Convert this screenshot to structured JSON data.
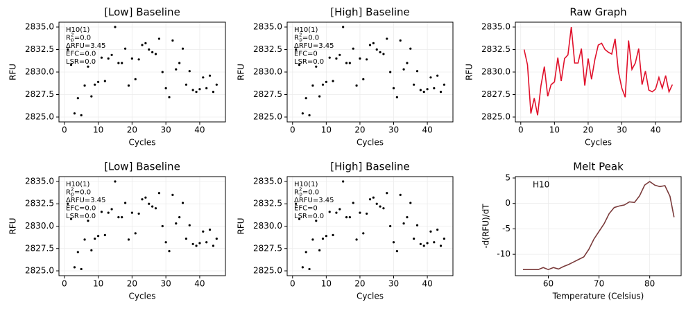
{
  "chart_data": [
    {
      "type": "scatter",
      "title": "[Low] Baseline",
      "x_label": "Cycles",
      "y_label": "RFU",
      "color": "#000000",
      "grid": true,
      "annotation": [
        "H10(1)",
        {
          "text": "R",
          "sup": "2",
          "sub": "p",
          "rest": "=0.0"
        },
        "ΔRFU=3.45",
        "EFC=0.0",
        "LSR=0.0"
      ],
      "x": [
        1,
        2,
        3,
        4,
        5,
        6,
        7,
        8,
        9,
        10,
        11,
        12,
        13,
        14,
        15,
        16,
        17,
        18,
        19,
        20,
        21,
        22,
        23,
        24,
        25,
        26,
        27,
        28,
        29,
        30,
        31,
        32,
        33,
        34,
        35,
        36,
        37,
        38,
        39,
        40,
        41,
        42,
        43,
        44,
        45
      ],
      "values": [
        2832.5,
        2830.8,
        2825.4,
        2827.1,
        2825.2,
        2828.5,
        2830.6,
        2827.3,
        2828.6,
        2828.9,
        2831.6,
        2829.0,
        2831.5,
        2831.9,
        2835.0,
        2831.0,
        2831.0,
        2832.6,
        2828.5,
        2831.5,
        2829.2,
        2831.4,
        2833.0,
        2833.2,
        2832.5,
        2832.2,
        2832.0,
        2833.7,
        2830.0,
        2828.2,
        2827.2,
        2833.5,
        2830.3,
        2831.0,
        2832.6,
        2828.6,
        2830.1,
        2828.0,
        2827.8,
        2828.1,
        2829.4,
        2828.2,
        2829.6,
        2827.8,
        2828.6
      ],
      "xlim": [
        -1.6,
        47.6
      ],
      "ylim": [
        2824.46,
        2835.54
      ],
      "xticks": [
        0,
        10,
        20,
        30,
        40
      ],
      "yticks": [
        {
          "value": 2825,
          "label": "2825.0"
        },
        2827.5,
        {
          "value": 2830,
          "label": "2830.0"
        },
        2832.5,
        {
          "value": 2835,
          "label": "2835.0"
        }
      ]
    },
    {
      "type": "scatter",
      "title": "[High] Baseline",
      "x_label": "Cycles",
      "y_label": "RFU",
      "color": "#000000",
      "grid": true,
      "annotation": [
        "H10(1)",
        {
          "text": "R",
          "sup": "2",
          "sub": "p",
          "rest": "=0.0"
        },
        "ΔRFU=3.45",
        "EFC=0",
        "LSR=0.0"
      ],
      "x": [
        1,
        2,
        3,
        4,
        5,
        6,
        7,
        8,
        9,
        10,
        11,
        12,
        13,
        14,
        15,
        16,
        17,
        18,
        19,
        20,
        21,
        22,
        23,
        24,
        25,
        26,
        27,
        28,
        29,
        30,
        31,
        32,
        33,
        34,
        35,
        36,
        37,
        38,
        39,
        40,
        41,
        42,
        43,
        44,
        45
      ],
      "values": [
        2832.5,
        2830.8,
        2825.4,
        2827.1,
        2825.2,
        2828.5,
        2830.6,
        2827.3,
        2828.6,
        2828.9,
        2831.6,
        2829.0,
        2831.5,
        2831.9,
        2835.0,
        2831.0,
        2831.0,
        2832.6,
        2828.5,
        2831.5,
        2829.2,
        2831.4,
        2833.0,
        2833.2,
        2832.5,
        2832.2,
        2832.0,
        2833.7,
        2830.0,
        2828.2,
        2827.2,
        2833.5,
        2830.3,
        2831.0,
        2832.6,
        2828.6,
        2830.1,
        2828.0,
        2827.8,
        2828.1,
        2829.4,
        2828.2,
        2829.6,
        2827.8,
        2828.6
      ],
      "xlim": [
        -1.6,
        47.6
      ],
      "ylim": [
        2824.46,
        2835.54
      ],
      "xticks": [
        0,
        10,
        20,
        30,
        40
      ],
      "yticks": [
        {
          "value": 2825,
          "label": "2825.0"
        },
        2827.5,
        {
          "value": 2830,
          "label": "2830.0"
        },
        2832.5,
        {
          "value": 2835,
          "label": "2835.0"
        }
      ]
    },
    {
      "type": "line",
      "title": "Raw Graph",
      "x_label": "Cycles",
      "y_label": "RFU",
      "color": "#e0102a",
      "grid": true,
      "x": [
        1,
        2,
        3,
        4,
        5,
        6,
        7,
        8,
        9,
        10,
        11,
        12,
        13,
        14,
        15,
        16,
        17,
        18,
        19,
        20,
        21,
        22,
        23,
        24,
        25,
        26,
        27,
        28,
        29,
        30,
        31,
        32,
        33,
        34,
        35,
        36,
        37,
        38,
        39,
        40,
        41,
        42,
        43,
        44,
        45
      ],
      "values": [
        2832.5,
        2830.8,
        2825.4,
        2827.1,
        2825.2,
        2828.5,
        2830.6,
        2827.3,
        2828.6,
        2828.9,
        2831.6,
        2829.0,
        2831.5,
        2831.9,
        2835.0,
        2831.0,
        2831.0,
        2832.6,
        2828.5,
        2831.5,
        2829.2,
        2831.4,
        2833.0,
        2833.2,
        2832.5,
        2832.2,
        2832.0,
        2833.7,
        2830.0,
        2828.2,
        2827.2,
        2833.5,
        2830.3,
        2831.0,
        2832.6,
        2828.6,
        2830.1,
        2828.0,
        2827.8,
        2828.1,
        2829.4,
        2828.2,
        2829.6,
        2827.8,
        2828.6
      ],
      "xlim": [
        -1.6,
        47.6
      ],
      "ylim": [
        2824.46,
        2835.54
      ],
      "xticks": [
        0,
        10,
        20,
        30,
        40
      ],
      "yticks": [
        {
          "value": 2825,
          "label": "2825.0"
        },
        2827.5,
        {
          "value": 2830,
          "label": "2830.0"
        },
        2832.5,
        {
          "value": 2835,
          "label": "2835.0"
        }
      ]
    },
    {
      "type": "scatter",
      "title": "[Low] Baseline",
      "x_label": "Cycles",
      "y_label": "RFU",
      "color": "#000000",
      "grid": true,
      "annotation": [
        "H10(1)",
        {
          "text": "R",
          "sup": "2",
          "sub": "p",
          "rest": "=0.0"
        },
        "ΔRFU=3.45",
        "EFC=0.0",
        "LSR=0.0"
      ],
      "x": [
        1,
        2,
        3,
        4,
        5,
        6,
        7,
        8,
        9,
        10,
        11,
        12,
        13,
        14,
        15,
        16,
        17,
        18,
        19,
        20,
        21,
        22,
        23,
        24,
        25,
        26,
        27,
        28,
        29,
        30,
        31,
        32,
        33,
        34,
        35,
        36,
        37,
        38,
        39,
        40,
        41,
        42,
        43,
        44,
        45
      ],
      "values": [
        2832.5,
        2830.8,
        2825.4,
        2827.1,
        2825.2,
        2828.5,
        2830.6,
        2827.3,
        2828.6,
        2828.9,
        2831.6,
        2829.0,
        2831.5,
        2831.9,
        2835.0,
        2831.0,
        2831.0,
        2832.6,
        2828.5,
        2831.5,
        2829.2,
        2831.4,
        2833.0,
        2833.2,
        2832.5,
        2832.2,
        2832.0,
        2833.7,
        2830.0,
        2828.2,
        2827.2,
        2833.5,
        2830.3,
        2831.0,
        2832.6,
        2828.6,
        2830.1,
        2828.0,
        2827.8,
        2828.1,
        2829.4,
        2828.2,
        2829.6,
        2827.8,
        2828.6
      ],
      "xlim": [
        -1.6,
        47.6
      ],
      "ylim": [
        2824.46,
        2835.54
      ],
      "xticks": [
        0,
        10,
        20,
        30,
        40
      ],
      "yticks": [
        {
          "value": 2825,
          "label": "2825.0"
        },
        2827.5,
        {
          "value": 2830,
          "label": "2830.0"
        },
        2832.5,
        {
          "value": 2835,
          "label": "2835.0"
        }
      ]
    },
    {
      "type": "scatter",
      "title": "[High] Baseline",
      "x_label": "Cycles",
      "y_label": "RFU",
      "color": "#000000",
      "grid": true,
      "annotation": [
        "H10(1)",
        {
          "text": "R",
          "sup": "2",
          "sub": "p",
          "rest": "=0.0"
        },
        "ΔRFU=3.45",
        "EFC=0",
        "LSR=0.0"
      ],
      "x": [
        1,
        2,
        3,
        4,
        5,
        6,
        7,
        8,
        9,
        10,
        11,
        12,
        13,
        14,
        15,
        16,
        17,
        18,
        19,
        20,
        21,
        22,
        23,
        24,
        25,
        26,
        27,
        28,
        29,
        30,
        31,
        32,
        33,
        34,
        35,
        36,
        37,
        38,
        39,
        40,
        41,
        42,
        43,
        44,
        45
      ],
      "values": [
        2832.5,
        2830.8,
        2825.4,
        2827.1,
        2825.2,
        2828.5,
        2830.6,
        2827.3,
        2828.6,
        2828.9,
        2831.6,
        2829.0,
        2831.5,
        2831.9,
        2835.0,
        2831.0,
        2831.0,
        2832.6,
        2828.5,
        2831.5,
        2829.2,
        2831.4,
        2833.0,
        2833.2,
        2832.5,
        2832.2,
        2832.0,
        2833.7,
        2830.0,
        2828.2,
        2827.2,
        2833.5,
        2830.3,
        2831.0,
        2832.6,
        2828.6,
        2830.1,
        2828.0,
        2827.8,
        2828.1,
        2829.4,
        2828.2,
        2829.6,
        2827.8,
        2828.6
      ],
      "xlim": [
        -1.6,
        47.6
      ],
      "ylim": [
        2824.46,
        2835.54
      ],
      "xticks": [
        0,
        10,
        20,
        30,
        40
      ],
      "yticks": [
        {
          "value": 2825,
          "label": "2825.0"
        },
        2827.5,
        {
          "value": 2830,
          "label": "2830.0"
        },
        2832.5,
        {
          "value": 2835,
          "label": "2835.0"
        }
      ]
    },
    {
      "type": "line",
      "title": "Melt Peak",
      "x_label": "Temperature (Celsius)",
      "y_label": "-d(RFU)/dT",
      "color": "#7a3b3b",
      "grid": true,
      "annotation": [
        "H10"
      ],
      "x": [
        55,
        56,
        57,
        58,
        59,
        60,
        61,
        62,
        63,
        64,
        65,
        66,
        67,
        68,
        69,
        70,
        71,
        72,
        73,
        74,
        75,
        76,
        77,
        78,
        79,
        80,
        81,
        82,
        83,
        84,
        84.8
      ],
      "values": [
        -13,
        -13,
        -13,
        -13,
        -12.6,
        -13,
        -12.6,
        -12.9,
        -12.4,
        -12,
        -11.5,
        -11,
        -10.5,
        -9,
        -7,
        -5.5,
        -4,
        -2,
        -0.8,
        -0.5,
        -0.3,
        0.3,
        0.2,
        1.5,
        3.6,
        4.3,
        3.6,
        3.3,
        3.5,
        1.4,
        -2.7
      ],
      "xlim": [
        53.5,
        86.2
      ],
      "ylim": [
        -14.2,
        5.27
      ],
      "xticks": [
        60,
        70,
        80
      ],
      "yticks": [
        -10,
        -5,
        0,
        5
      ]
    }
  ]
}
